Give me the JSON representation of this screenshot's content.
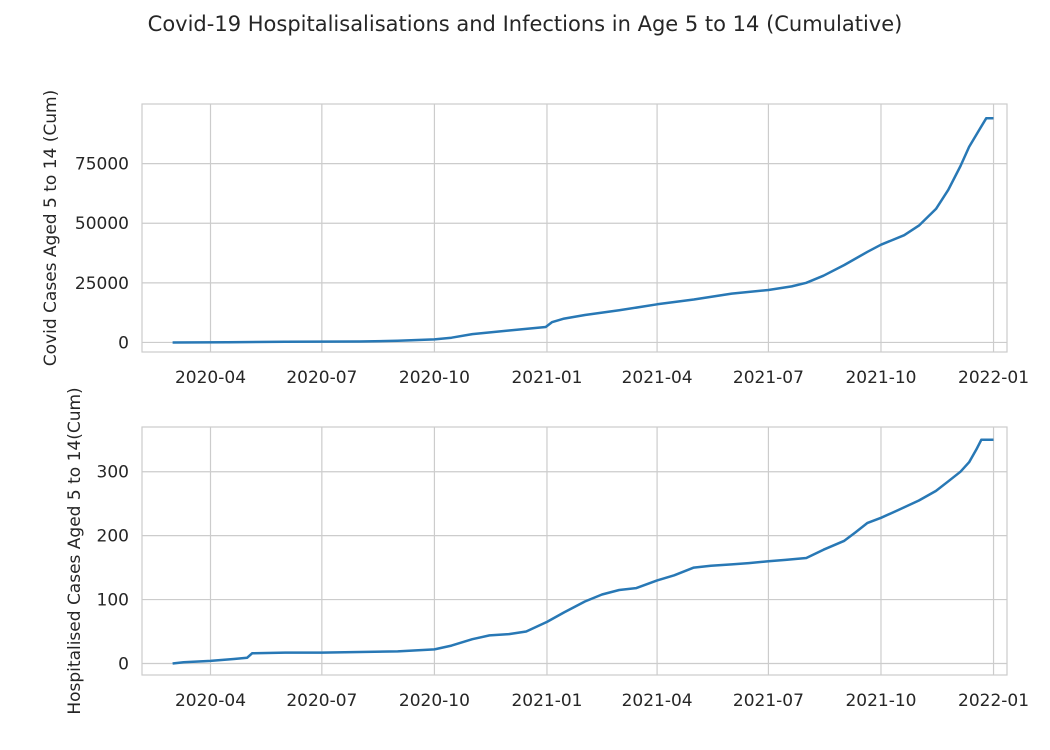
{
  "figure": {
    "suptitle": "Covid-19 Hospitalisalisations and Infections in Age 5 to 14 (Cumulative)"
  },
  "chart_data": [
    {
      "type": "line",
      "title": "",
      "xlabel": "",
      "ylabel": "Covid Cases Aged 5 to 14 (Cum)",
      "x_axis": "date",
      "xlim": [
        "2020-02-05",
        "2022-01-12"
      ],
      "ylim": [
        -4000,
        100000
      ],
      "xticks": [
        "2020-04-01",
        "2020-07-01",
        "2020-10-01",
        "2021-01-01",
        "2021-04-01",
        "2021-07-01",
        "2021-10-01",
        "2022-01-01"
      ],
      "xtick_labels": [
        "2020-04",
        "2020-07",
        "2020-10",
        "2021-01",
        "2021-04",
        "2021-07",
        "2021-10",
        "2022-01"
      ],
      "yticks": [
        0,
        25000,
        50000,
        75000
      ],
      "ytick_labels": [
        "0",
        "25000",
        "50000",
        "75000"
      ],
      "grid": true,
      "series": [
        {
          "color": "#2878b5",
          "x": [
            "2020-03-01",
            "2020-04-15",
            "2020-06-01",
            "2020-08-01",
            "2020-09-01",
            "2020-10-01",
            "2020-10-15",
            "2020-11-01",
            "2020-12-01",
            "2020-12-31",
            "2021-01-05",
            "2021-01-15",
            "2021-02-01",
            "2021-03-01",
            "2021-04-01",
            "2021-05-01",
            "2021-06-01",
            "2021-07-01",
            "2021-07-20",
            "2021-08-01",
            "2021-08-15",
            "2021-09-01",
            "2021-09-20",
            "2021-10-01",
            "2021-10-20",
            "2021-11-01",
            "2021-11-15",
            "2021-11-25",
            "2021-12-05",
            "2021-12-12",
            "2021-12-19",
            "2021-12-26",
            "2022-01-01"
          ],
          "y": [
            0,
            100,
            300,
            400,
            700,
            1300,
            2000,
            3500,
            5000,
            6500,
            8500,
            10000,
            11500,
            13500,
            16000,
            18000,
            20500,
            22000,
            23500,
            25000,
            28000,
            32500,
            38000,
            41000,
            45000,
            49000,
            56000,
            64000,
            74000,
            82000,
            88000,
            94000,
            94000
          ]
        }
      ]
    },
    {
      "type": "line",
      "title": "",
      "xlabel": "",
      "ylabel": "Hospitalised Cases Aged 5 to 14(Cum)",
      "x_axis": "date",
      "xlim": [
        "2020-02-05",
        "2022-01-12"
      ],
      "ylim": [
        -18,
        370
      ],
      "xticks": [
        "2020-04-01",
        "2020-07-01",
        "2020-10-01",
        "2021-01-01",
        "2021-04-01",
        "2021-07-01",
        "2021-10-01",
        "2022-01-01"
      ],
      "xtick_labels": [
        "2020-04",
        "2020-07",
        "2020-10",
        "2021-01",
        "2021-04",
        "2021-07",
        "2021-10",
        "2022-01"
      ],
      "yticks": [
        0,
        100,
        200,
        300
      ],
      "ytick_labels": [
        "0",
        "100",
        "200",
        "300"
      ],
      "grid": true,
      "series": [
        {
          "color": "#2878b5",
          "x": [
            "2020-03-01",
            "2020-03-10",
            "2020-04-01",
            "2020-04-20",
            "2020-05-01",
            "2020-05-05",
            "2020-06-01",
            "2020-07-01",
            "2020-08-01",
            "2020-09-01",
            "2020-10-01",
            "2020-10-15",
            "2020-11-01",
            "2020-11-15",
            "2020-12-01",
            "2020-12-15",
            "2021-01-01",
            "2021-01-15",
            "2021-02-01",
            "2021-02-15",
            "2021-03-01",
            "2021-03-15",
            "2021-04-01",
            "2021-04-15",
            "2021-05-01",
            "2021-05-15",
            "2021-06-01",
            "2021-06-15",
            "2021-07-01",
            "2021-07-15",
            "2021-08-01",
            "2021-08-15",
            "2021-09-01",
            "2021-09-10",
            "2021-09-20",
            "2021-10-01",
            "2021-10-15",
            "2021-11-01",
            "2021-11-15",
            "2021-11-25",
            "2021-12-05",
            "2021-12-12",
            "2021-12-18",
            "2021-12-22",
            "2022-01-01"
          ],
          "y": [
            0,
            2,
            4,
            7,
            9,
            16,
            17,
            17,
            18,
            19,
            22,
            28,
            38,
            44,
            46,
            50,
            65,
            80,
            97,
            108,
            115,
            118,
            130,
            138,
            150,
            153,
            155,
            157,
            160,
            162,
            165,
            178,
            192,
            205,
            220,
            228,
            240,
            255,
            270,
            285,
            300,
            315,
            335,
            350,
            350
          ]
        }
      ]
    }
  ]
}
